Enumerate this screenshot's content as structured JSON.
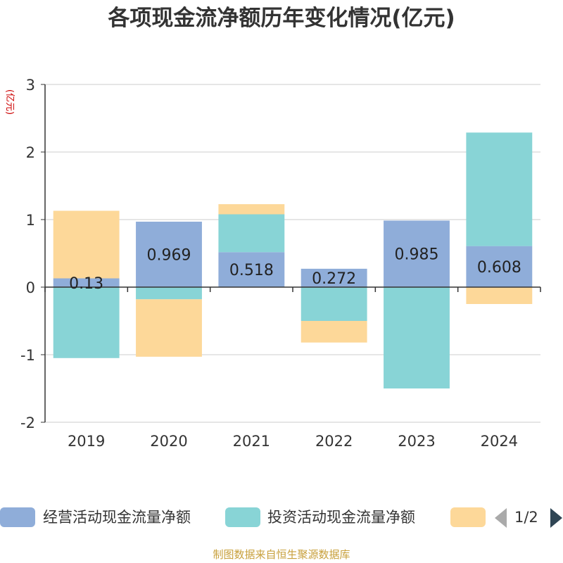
{
  "title": "各项现金流净额历年变化情况(亿元)",
  "source": "制图数据来自恒生聚源数据库",
  "legend": {
    "page_text": "1/2"
  },
  "chart_data": {
    "type": "bar",
    "stacked": true,
    "title": "各项现金流净额历年变化情况(亿元)",
    "ylabel": "(亿元)",
    "ylim": [
      -2,
      3
    ],
    "yticks": [
      -2,
      -1,
      0,
      1,
      2,
      3
    ],
    "grid": true,
    "legend_position": "bottom",
    "categories": [
      "2019",
      "2020",
      "2021",
      "2022",
      "2023",
      "2024"
    ],
    "series": [
      {
        "name": "经营活动现金流量净额",
        "color": "#8fadd9",
        "values": [
          0.13,
          0.969,
          0.518,
          0.272,
          0.985,
          0.608
        ],
        "labels": [
          "0.13",
          "0.969",
          "0.518",
          "0.272",
          "0.985",
          "0.608"
        ]
      },
      {
        "name": "投资活动现金流量净额",
        "color": "#88d4d6",
        "values": [
          -1.05,
          -0.18,
          0.56,
          -0.5,
          -1.5,
          1.68
        ]
      },
      {
        "name": "",
        "color": "#fdd899",
        "values": [
          1.0,
          -0.85,
          0.15,
          -0.32,
          0.0,
          -0.25
        ]
      }
    ]
  }
}
